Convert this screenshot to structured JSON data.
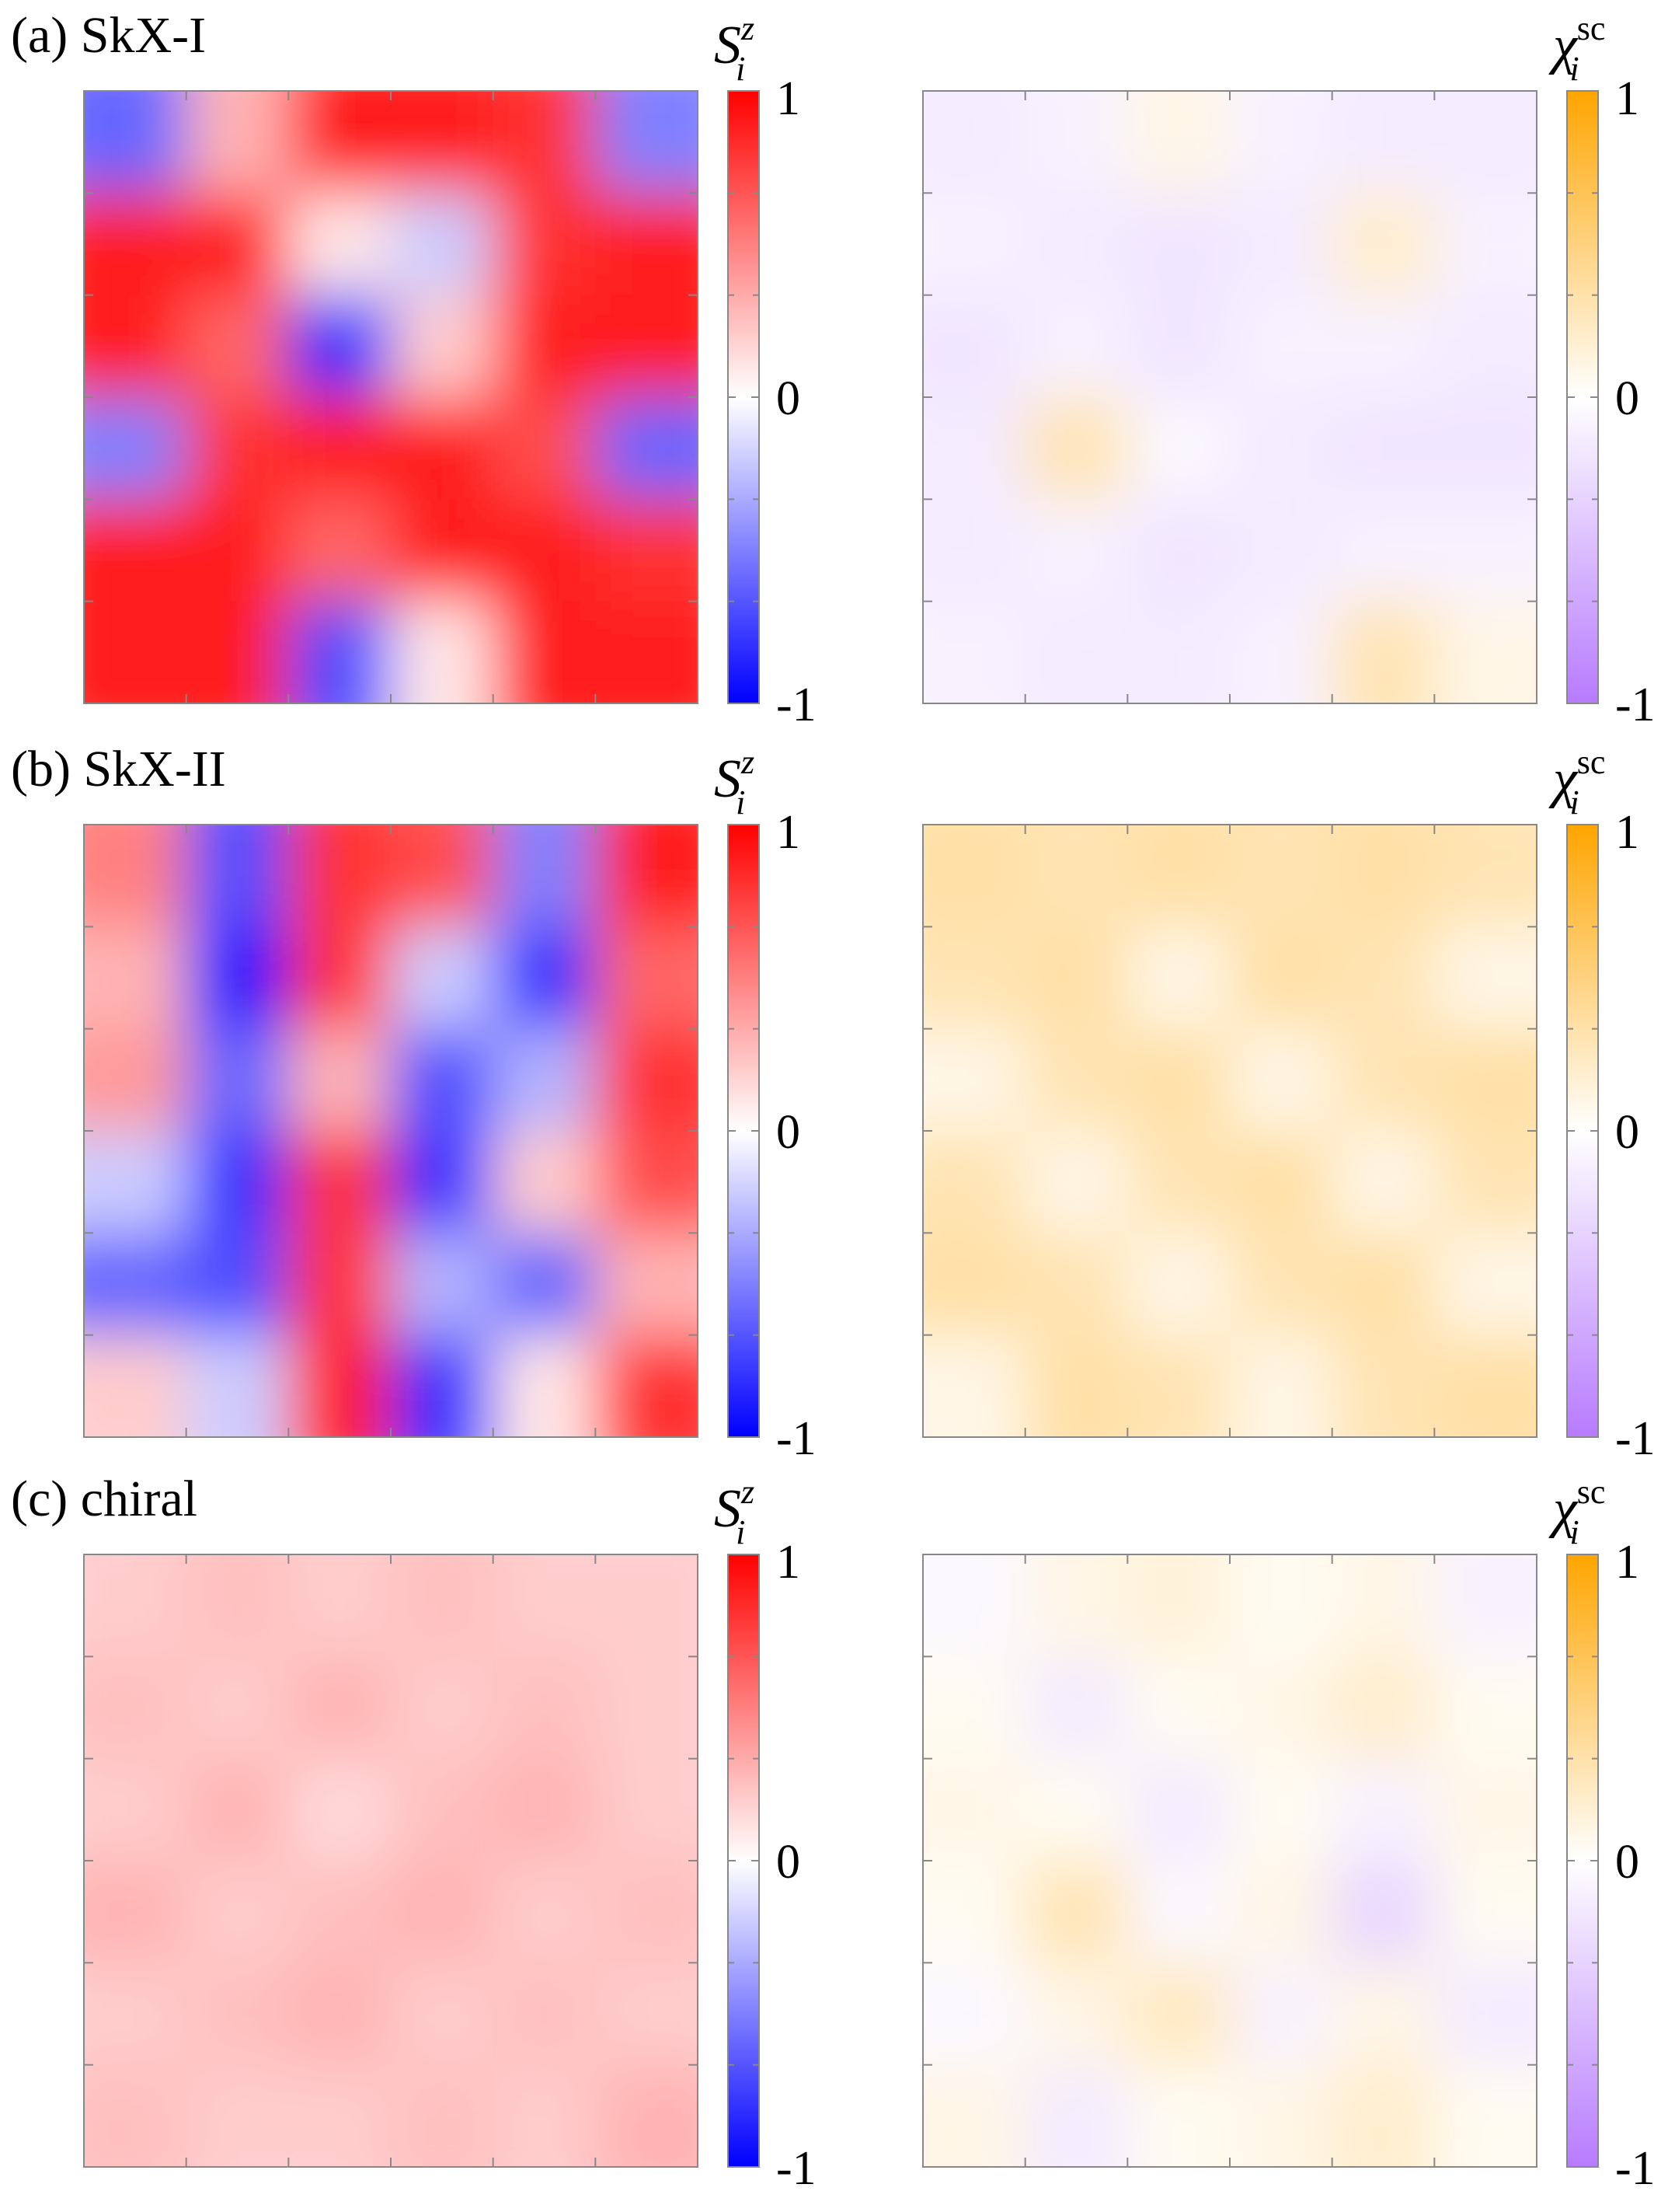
{
  "chart_data": [
    {
      "type": "heatmap",
      "title": "(a) SkX-I",
      "colorbar_label": {
        "base": "S",
        "sub": "i",
        "sup": "z"
      },
      "colormap": [
        "#0000ff",
        "#ffffff",
        "#ff0000"
      ],
      "zlim": [
        -1,
        1
      ],
      "zticks": [
        -1,
        0,
        1
      ],
      "z": [
        [
          -0.6,
          0.3,
          0.9,
          0.9,
          0.8,
          -0.5
        ],
        [
          0.9,
          0.9,
          0.1,
          -0.2,
          0.8,
          0.9
        ],
        [
          0.9,
          0.6,
          -0.8,
          0.2,
          0.9,
          0.9
        ],
        [
          -0.5,
          0.8,
          0.9,
          0.9,
          0.7,
          -0.6
        ],
        [
          0.9,
          0.9,
          0.6,
          0.9,
          0.9,
          0.8
        ],
        [
          0.9,
          0.9,
          -0.7,
          0.1,
          0.9,
          0.9
        ]
      ]
    },
    {
      "type": "heatmap",
      "colorbar_label": {
        "base": "χ",
        "sub": "i",
        "sup": "sc"
      },
      "colormap": [
        "#b77bff",
        "#ffffff",
        "#ffa500"
      ],
      "zlim": [
        -1,
        1
      ],
      "zticks": [
        -1,
        0,
        1
      ],
      "z": [
        [
          -0.15,
          -0.1,
          0.1,
          -0.1,
          -0.15,
          -0.15
        ],
        [
          -0.1,
          -0.15,
          -0.2,
          -0.15,
          0.2,
          -0.1
        ],
        [
          -0.2,
          -0.1,
          -0.2,
          -0.1,
          -0.1,
          -0.15
        ],
        [
          -0.15,
          0.3,
          -0.05,
          -0.15,
          -0.2,
          -0.2
        ],
        [
          -0.15,
          -0.1,
          -0.2,
          -0.15,
          -0.1,
          -0.1
        ],
        [
          -0.1,
          -0.15,
          -0.15,
          -0.1,
          0.3,
          0.1
        ]
      ]
    },
    {
      "type": "heatmap",
      "title": "(b) SkX-II",
      "colorbar_label": {
        "base": "S",
        "sub": "i",
        "sup": "z"
      },
      "colormap": [
        "#0000ff",
        "#ffffff",
        "#ff0000"
      ],
      "zlim": [
        -1,
        1
      ],
      "zticks": [
        -1,
        0,
        1
      ],
      "z": [
        [
          0.5,
          -0.7,
          0.8,
          0.7,
          -0.5,
          0.9
        ],
        [
          0.3,
          -0.9,
          0.8,
          -0.2,
          -0.8,
          0.6
        ],
        [
          0.4,
          -0.6,
          0.3,
          -0.7,
          -0.3,
          0.8
        ],
        [
          -0.2,
          -0.8,
          0.8,
          -0.8,
          0.2,
          0.7
        ],
        [
          -0.6,
          -0.7,
          0.8,
          -0.3,
          -0.6,
          0.3
        ],
        [
          0.2,
          -0.2,
          0.9,
          -0.8,
          0.1,
          0.8
        ]
      ]
    },
    {
      "type": "heatmap",
      "colorbar_label": {
        "base": "χ",
        "sub": "i",
        "sup": "sc"
      },
      "colormap": [
        "#b77bff",
        "#ffffff",
        "#ffa500"
      ],
      "zlim": [
        -1,
        1
      ],
      "zticks": [
        -1,
        0,
        1
      ],
      "z": [
        [
          0.35,
          0.3,
          0.35,
          0.3,
          0.35,
          0.3
        ],
        [
          0.3,
          0.35,
          0.1,
          0.35,
          0.3,
          0.1
        ],
        [
          0.1,
          0.3,
          0.35,
          0.1,
          0.3,
          0.35
        ],
        [
          0.3,
          0.1,
          0.3,
          0.35,
          0.1,
          0.3
        ],
        [
          0.35,
          0.3,
          0.1,
          0.3,
          0.35,
          0.1
        ],
        [
          0.1,
          0.35,
          0.3,
          0.1,
          0.3,
          0.35
        ]
      ]
    },
    {
      "type": "heatmap",
      "title": "(c) chiral",
      "colorbar_label": {
        "base": "S",
        "sub": "i",
        "sup": "z"
      },
      "colormap": [
        "#0000ff",
        "#ffffff",
        "#ff0000"
      ],
      "zlim": [
        -1,
        1
      ],
      "zticks": [
        -1,
        0,
        1
      ],
      "z": [
        [
          0.2,
          0.25,
          0.2,
          0.25,
          0.2,
          0.2
        ],
        [
          0.25,
          0.2,
          0.3,
          0.2,
          0.25,
          0.2
        ],
        [
          0.2,
          0.3,
          0.15,
          0.25,
          0.3,
          0.2
        ],
        [
          0.3,
          0.2,
          0.25,
          0.3,
          0.2,
          0.25
        ],
        [
          0.2,
          0.25,
          0.3,
          0.2,
          0.25,
          0.2
        ],
        [
          0.25,
          0.2,
          0.2,
          0.25,
          0.2,
          0.3
        ]
      ]
    },
    {
      "type": "heatmap",
      "colorbar_label": {
        "base": "χ",
        "sub": "i",
        "sup": "sc"
      },
      "colormap": [
        "#b77bff",
        "#ffffff",
        "#ffa500"
      ],
      "zlim": [
        -1,
        1
      ],
      "zticks": [
        -1,
        0,
        1
      ],
      "z": [
        [
          -0.05,
          0.1,
          0.15,
          0.05,
          0.1,
          -0.1
        ],
        [
          0.05,
          -0.15,
          0.05,
          0.1,
          0.2,
          0.05
        ],
        [
          0.1,
          0.05,
          -0.15,
          0.05,
          -0.1,
          0.1
        ],
        [
          0.05,
          0.3,
          -0.05,
          0.1,
          -0.3,
          0.05
        ],
        [
          -0.05,
          0.1,
          0.25,
          -0.1,
          0.1,
          -0.15
        ],
        [
          0.1,
          -0.15,
          0.05,
          0.1,
          0.2,
          0.05
        ]
      ]
    }
  ]
}
